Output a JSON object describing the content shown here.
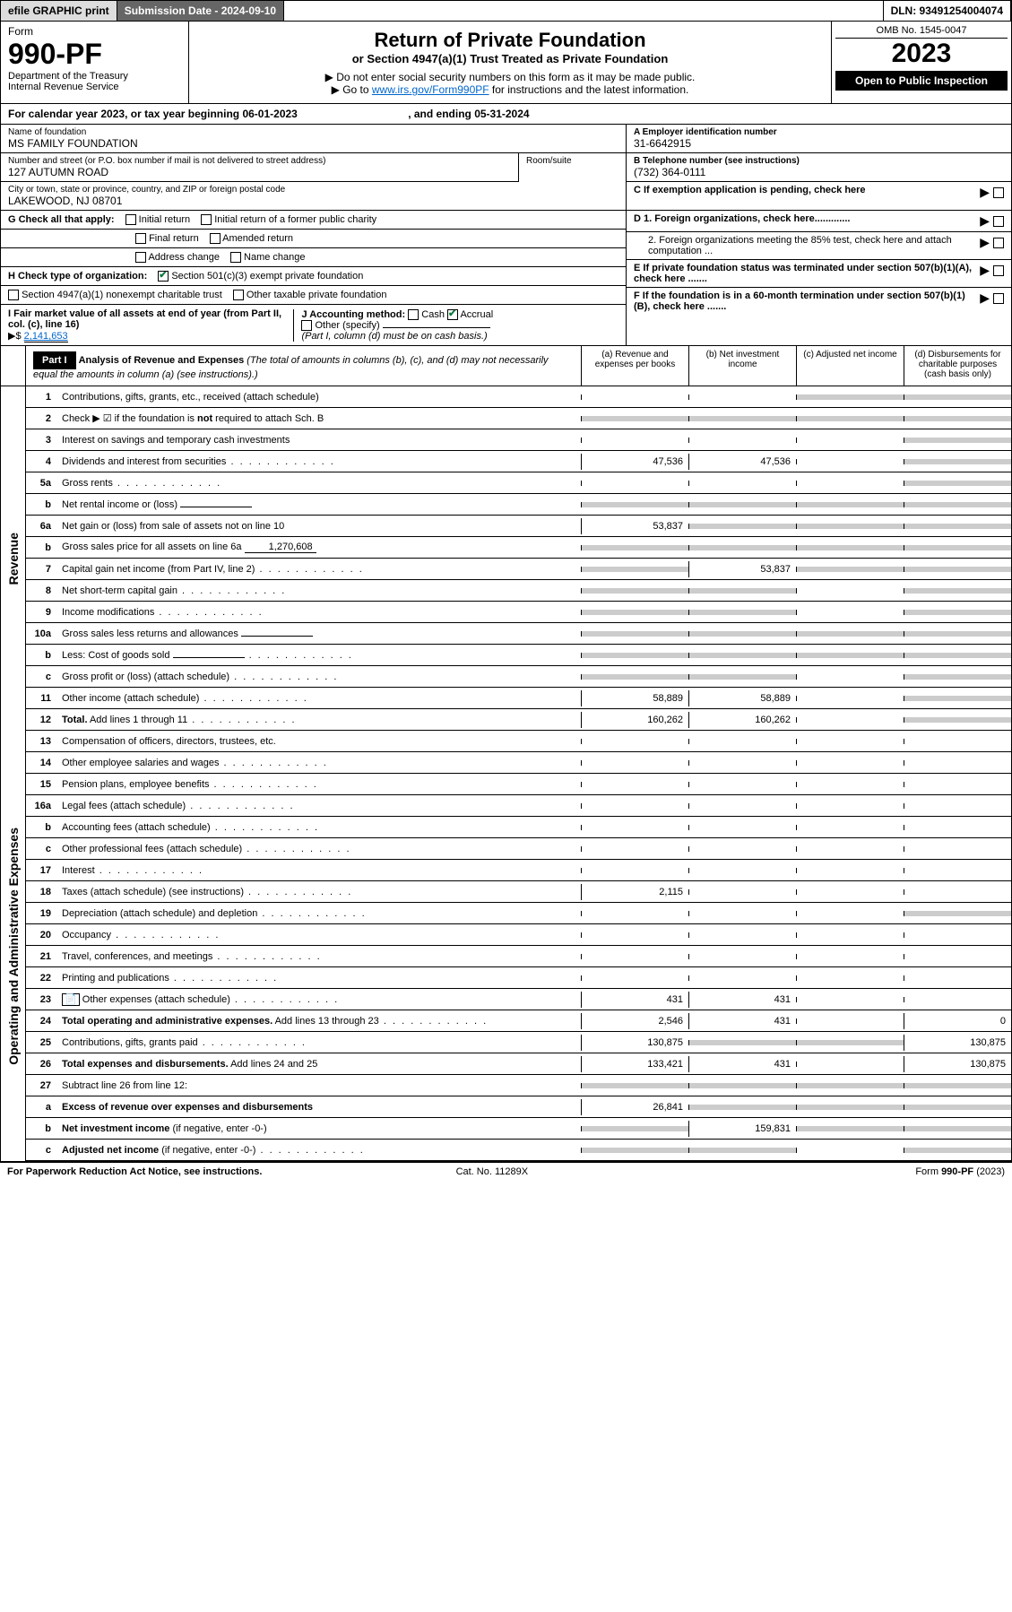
{
  "top": {
    "efile": "efile GRAPHIC print",
    "submission_label": "Submission Date - 2024-09-10",
    "dln": "DLN: 93491254004074"
  },
  "header": {
    "form_word": "Form",
    "form_no": "990-PF",
    "dept": "Department of the Treasury",
    "irs": "Internal Revenue Service",
    "title": "Return of Private Foundation",
    "subtitle": "or Section 4947(a)(1) Trust Treated as Private Foundation",
    "note1": "▶ Do not enter social security numbers on this form as it may be made public.",
    "note2_a": "▶ Go to ",
    "note2_link": "www.irs.gov/Form990PF",
    "note2_b": " for instructions and the latest information.",
    "omb": "OMB No. 1545-0047",
    "year": "2023",
    "inspection": "Open to Public Inspection"
  },
  "calyear": {
    "text_a": "For calendar year 2023, or tax year beginning ",
    "begin": "06-01-2023",
    "text_b": " , and ending ",
    "end": "05-31-2024"
  },
  "info": {
    "name_label": "Name of foundation",
    "name": "MS FAMILY FOUNDATION",
    "addr_label": "Number and street (or P.O. box number if mail is not delivered to street address)",
    "addr": "127 AUTUMN ROAD",
    "room_label": "Room/suite",
    "city_label": "City or town, state or province, country, and ZIP or foreign postal code",
    "city": "LAKEWOOD, NJ  08701",
    "a_label": "A Employer identification number",
    "a_val": "31-6642915",
    "b_label": "B Telephone number (see instructions)",
    "b_val": "(732) 364-0111",
    "c_label": "C If exemption application is pending, check here",
    "d1": "D 1. Foreign organizations, check here.............",
    "d2": "2. Foreign organizations meeting the 85% test, check here and attach computation ...",
    "e": "E If private foundation status was terminated under section 507(b)(1)(A), check here .......",
    "f": "F If the foundation is in a 60-month termination under section 507(b)(1)(B), check here ......."
  },
  "g": {
    "label": "G Check all that apply:",
    "opts": [
      "Initial return",
      "Final return",
      "Address change",
      "Initial return of a former public charity",
      "Amended return",
      "Name change"
    ]
  },
  "h": {
    "label": "H Check type of organization:",
    "opt1": "Section 501(c)(3) exempt private foundation",
    "opt2": "Section 4947(a)(1) nonexempt charitable trust",
    "opt3": "Other taxable private foundation"
  },
  "i": {
    "label": "I Fair market value of all assets at end of year (from Part II, col. (c), line 16)",
    "arrow": "▶$",
    "val": "2,141,653"
  },
  "j": {
    "label": "J Accounting method:",
    "cash": "Cash",
    "accrual": "Accrual",
    "other": "Other (specify)",
    "note": "(Part I, column (d) must be on cash basis.)"
  },
  "part1": {
    "tag": "Part I",
    "title": "Analysis of Revenue and Expenses",
    "note": " (The total of amounts in columns (b), (c), and (d) may not necessarily equal the amounts in column (a) (see instructions).)",
    "cols": {
      "a": "(a) Revenue and expenses per books",
      "b": "(b) Net investment income",
      "c": "(c) Adjusted net income",
      "d": "(d) Disbursements for charitable purposes (cash basis only)"
    }
  },
  "sections": {
    "revenue": "Revenue",
    "expenses": "Operating and Administrative Expenses"
  },
  "lines": [
    {
      "no": "1",
      "desc": "Contributions, gifts, grants, etc., received (attach schedule)",
      "a": "",
      "b": "",
      "c": "",
      "d": "",
      "c_grey": true,
      "d_grey": true
    },
    {
      "no": "2",
      "desc": "Check ▶ ☑ if the foundation is <b>not</b> required to attach Sch. B",
      "a": "grey",
      "b": "grey",
      "c": "grey",
      "d": "grey",
      "all_grey": true
    },
    {
      "no": "3",
      "desc": "Interest on savings and temporary cash investments",
      "a": "",
      "b": "",
      "c": "",
      "d": "",
      "d_grey": true
    },
    {
      "no": "4",
      "desc": "Dividends and interest from securities",
      "a": "47,536",
      "b": "47,536",
      "c": "",
      "d": "",
      "d_grey": true,
      "dots": true
    },
    {
      "no": "5a",
      "desc": "Gross rents",
      "a": "",
      "b": "",
      "c": "",
      "d": "",
      "d_grey": true,
      "dots": true
    },
    {
      "no": "b",
      "desc": "Net rental income or (loss)",
      "a": "grey",
      "b": "grey",
      "c": "grey",
      "d": "grey",
      "all_grey": true,
      "inline": ""
    },
    {
      "no": "6a",
      "desc": "Net gain or (loss) from sale of assets not on line 10",
      "a": "53,837",
      "b": "grey",
      "c": "grey",
      "d": "grey",
      "b_grey": true,
      "c_grey": true,
      "d_grey": true
    },
    {
      "no": "b",
      "desc": "Gross sales price for all assets on line 6a",
      "a": "grey",
      "b": "grey",
      "c": "grey",
      "d": "grey",
      "all_grey": true,
      "inline": "1,270,608"
    },
    {
      "no": "7",
      "desc": "Capital gain net income (from Part IV, line 2)",
      "a": "grey",
      "b": "53,837",
      "c": "grey",
      "d": "grey",
      "a_grey": true,
      "c_grey": true,
      "d_grey": true,
      "dots": true
    },
    {
      "no": "8",
      "desc": "Net short-term capital gain",
      "a": "grey",
      "b": "grey",
      "c": "",
      "d": "grey",
      "a_grey": true,
      "b_grey": true,
      "d_grey": true,
      "dots": true
    },
    {
      "no": "9",
      "desc": "Income modifications",
      "a": "grey",
      "b": "grey",
      "c": "",
      "d": "grey",
      "a_grey": true,
      "b_grey": true,
      "d_grey": true,
      "dots": true
    },
    {
      "no": "10a",
      "desc": "Gross sales less returns and allowances",
      "a": "grey",
      "b": "grey",
      "c": "grey",
      "d": "grey",
      "all_grey": true,
      "inline": ""
    },
    {
      "no": "b",
      "desc": "Less: Cost of goods sold",
      "a": "grey",
      "b": "grey",
      "c": "grey",
      "d": "grey",
      "all_grey": true,
      "inline": "",
      "dots": true
    },
    {
      "no": "c",
      "desc": "Gross profit or (loss) (attach schedule)",
      "a": "grey",
      "b": "grey",
      "c": "",
      "d": "grey",
      "a_grey": true,
      "b_grey": true,
      "d_grey": true,
      "dots": true
    },
    {
      "no": "11",
      "desc": "Other income (attach schedule)",
      "a": "58,889",
      "b": "58,889",
      "c": "",
      "d": "",
      "d_grey": true,
      "dots": true
    },
    {
      "no": "12",
      "desc": "<b>Total.</b> Add lines 1 through 11",
      "a": "160,262",
      "b": "160,262",
      "c": "",
      "d": "",
      "d_grey": true,
      "dots": true
    }
  ],
  "exp_lines": [
    {
      "no": "13",
      "desc": "Compensation of officers, directors, trustees, etc."
    },
    {
      "no": "14",
      "desc": "Other employee salaries and wages",
      "dots": true
    },
    {
      "no": "15",
      "desc": "Pension plans, employee benefits",
      "dots": true
    },
    {
      "no": "16a",
      "desc": "Legal fees (attach schedule)",
      "dots": true
    },
    {
      "no": "b",
      "desc": "Accounting fees (attach schedule)",
      "dots": true
    },
    {
      "no": "c",
      "desc": "Other professional fees (attach schedule)",
      "dots": true
    },
    {
      "no": "17",
      "desc": "Interest",
      "dots": true
    },
    {
      "no": "18",
      "desc": "Taxes (attach schedule) (see instructions)",
      "a": "2,115",
      "dots": true
    },
    {
      "no": "19",
      "desc": "Depreciation (attach schedule) and depletion",
      "d_grey": true,
      "dots": true
    },
    {
      "no": "20",
      "desc": "Occupancy",
      "dots": true
    },
    {
      "no": "21",
      "desc": "Travel, conferences, and meetings",
      "dots": true
    },
    {
      "no": "22",
      "desc": "Printing and publications",
      "dots": true
    },
    {
      "no": "23",
      "desc": "Other expenses (attach schedule)",
      "a": "431",
      "b": "431",
      "icon": true,
      "dots": true
    },
    {
      "no": "24",
      "desc": "<b>Total operating and administrative expenses.</b> Add lines 13 through 23",
      "a": "2,546",
      "b": "431",
      "d": "0",
      "dots": true
    },
    {
      "no": "25",
      "desc": "Contributions, gifts, grants paid",
      "a": "130,875",
      "b": "grey",
      "c": "grey",
      "d": "130,875",
      "b_grey": true,
      "c_grey": true,
      "dots": true
    },
    {
      "no": "26",
      "desc": "<b>Total expenses and disbursements.</b> Add lines 24 and 25",
      "a": "133,421",
      "b": "431",
      "d": "130,875"
    },
    {
      "no": "27",
      "desc": "Subtract line 26 from line 12:",
      "all_grey": true
    },
    {
      "no": "a",
      "desc": "<b>Excess of revenue over expenses and disbursements</b>",
      "a": "26,841",
      "b": "grey",
      "c": "grey",
      "d": "grey",
      "b_grey": true,
      "c_grey": true,
      "d_grey": true
    },
    {
      "no": "b",
      "desc": "<b>Net investment income</b> (if negative, enter -0-)",
      "a": "grey",
      "b": "159,831",
      "c": "grey",
      "d": "grey",
      "a_grey": true,
      "c_grey": true,
      "d_grey": true
    },
    {
      "no": "c",
      "desc": "<b>Adjusted net income</b> (if negative, enter -0-)",
      "a": "grey",
      "b": "grey",
      "c": "",
      "d": "grey",
      "a_grey": true,
      "b_grey": true,
      "d_grey": true,
      "dots": true
    }
  ],
  "footer": {
    "left": "For Paperwork Reduction Act Notice, see instructions.",
    "mid": "Cat. No. 11289X",
    "right": "Form 990-PF (2023)"
  }
}
